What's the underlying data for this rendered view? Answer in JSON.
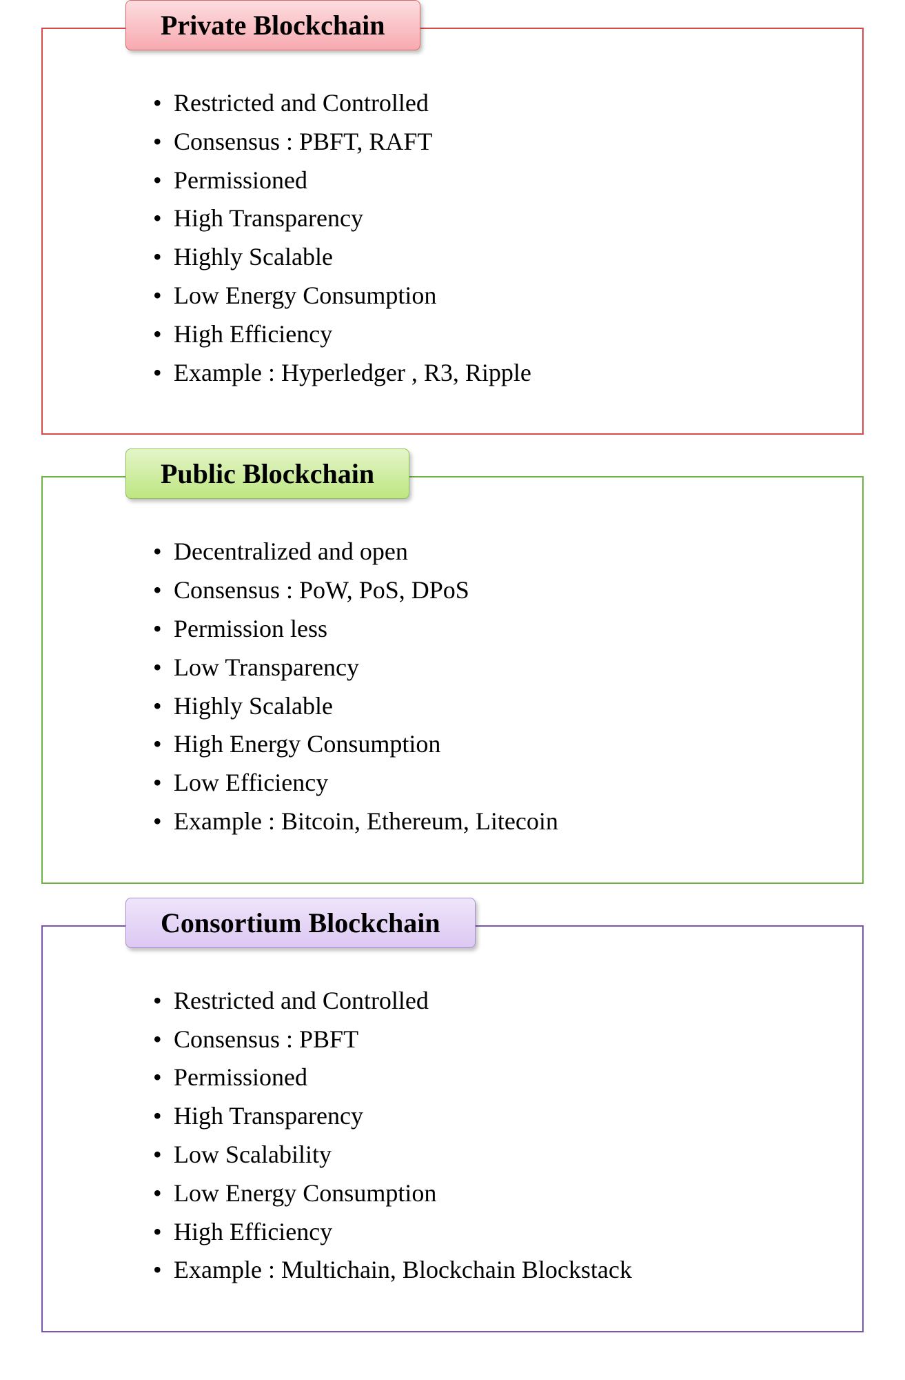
{
  "panels": [
    {
      "title": "Private Blockchain",
      "border_color": "#d94a4a",
      "title_bg_gradient_top": "#fcdde0",
      "title_bg_gradient_bottom": "#f7aab0",
      "title_border_color": "#d96a6a",
      "items": [
        "Restricted and Controlled",
        "Consensus : PBFT, RAFT",
        "Permissioned",
        "High Transparency",
        "Highly Scalable",
        "Low Energy Consumption",
        "High Efficiency",
        "Example : Hyperledger , R3, Ripple"
      ]
    },
    {
      "title": "Public Blockchain",
      "border_color": "#6db33f",
      "title_bg_gradient_top": "#e4f5c9",
      "title_bg_gradient_bottom": "#bde680",
      "title_border_color": "#8fbf5f",
      "items": [
        "Decentralized and open",
        "Consensus : PoW, PoS, DPoS",
        "Permission less",
        "Low Transparency",
        "Highly Scalable",
        "High Energy Consumption",
        "Low Efficiency",
        "Example : Bitcoin, Ethereum, Litecoin"
      ]
    },
    {
      "title": "Consortium Blockchain",
      "border_color": "#7a55b0",
      "title_bg_gradient_top": "#efe5fa",
      "title_bg_gradient_bottom": "#dcc8f2",
      "title_border_color": "#a98fd1",
      "items": [
        "Restricted and Controlled",
        "Consensus : PBFT",
        "Permissioned",
        "High Transparency",
        "Low Scalability",
        "Low Energy Consumption",
        "High Efficiency",
        "Example : Multichain,  Blockchain Blockstack"
      ]
    }
  ],
  "title_fontsize": 40,
  "item_fontsize": 36,
  "background_color": "#ffffff"
}
